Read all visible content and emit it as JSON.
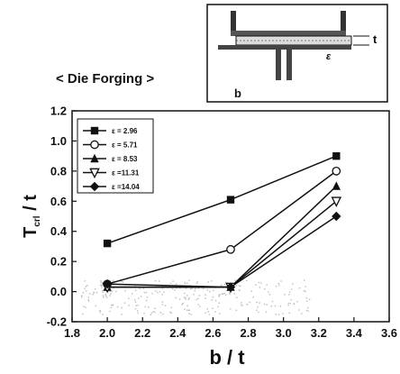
{
  "subtitle": "< Die Forging >",
  "chart_data": {
    "type": "line",
    "xlabel": "b / t",
    "ylabel_main": "T",
    "ylabel_sub": "crl",
    "ylabel_tail": " / t",
    "xlim": [
      1.8,
      3.6
    ],
    "ylim": [
      -0.2,
      1.2
    ],
    "xticks": [
      "1.8",
      "2.0",
      "2.2",
      "2.4",
      "2.6",
      "2.8",
      "3.0",
      "3.2",
      "3.4",
      "3.6"
    ],
    "yticks": [
      "-0.2",
      "0.0",
      "0.2",
      "0.4",
      "0.6",
      "0.8",
      "1.0",
      "1.2"
    ],
    "x": [
      2.0,
      2.7,
      3.3
    ],
    "series": [
      {
        "name": "ε = 2.96",
        "marker": "square",
        "values": [
          0.32,
          0.61,
          0.9
        ]
      },
      {
        "name": "ε = 5.71",
        "marker": "circle-open",
        "values": [
          0.05,
          0.28,
          0.8
        ]
      },
      {
        "name": "ε = 8.53",
        "marker": "triangle-up",
        "values": [
          0.03,
          0.03,
          0.7
        ]
      },
      {
        "name": "ε =11.31",
        "marker": "triangle-down-open",
        "values": [
          0.03,
          0.03,
          0.6
        ]
      },
      {
        "name": "ε =14.04",
        "marker": "diamond",
        "values": [
          0.05,
          0.03,
          0.5
        ]
      }
    ],
    "legend_position": "top-left",
    "grid": false
  },
  "inset": {
    "label_t": "t",
    "label_e": "ε",
    "label_b": "b"
  }
}
